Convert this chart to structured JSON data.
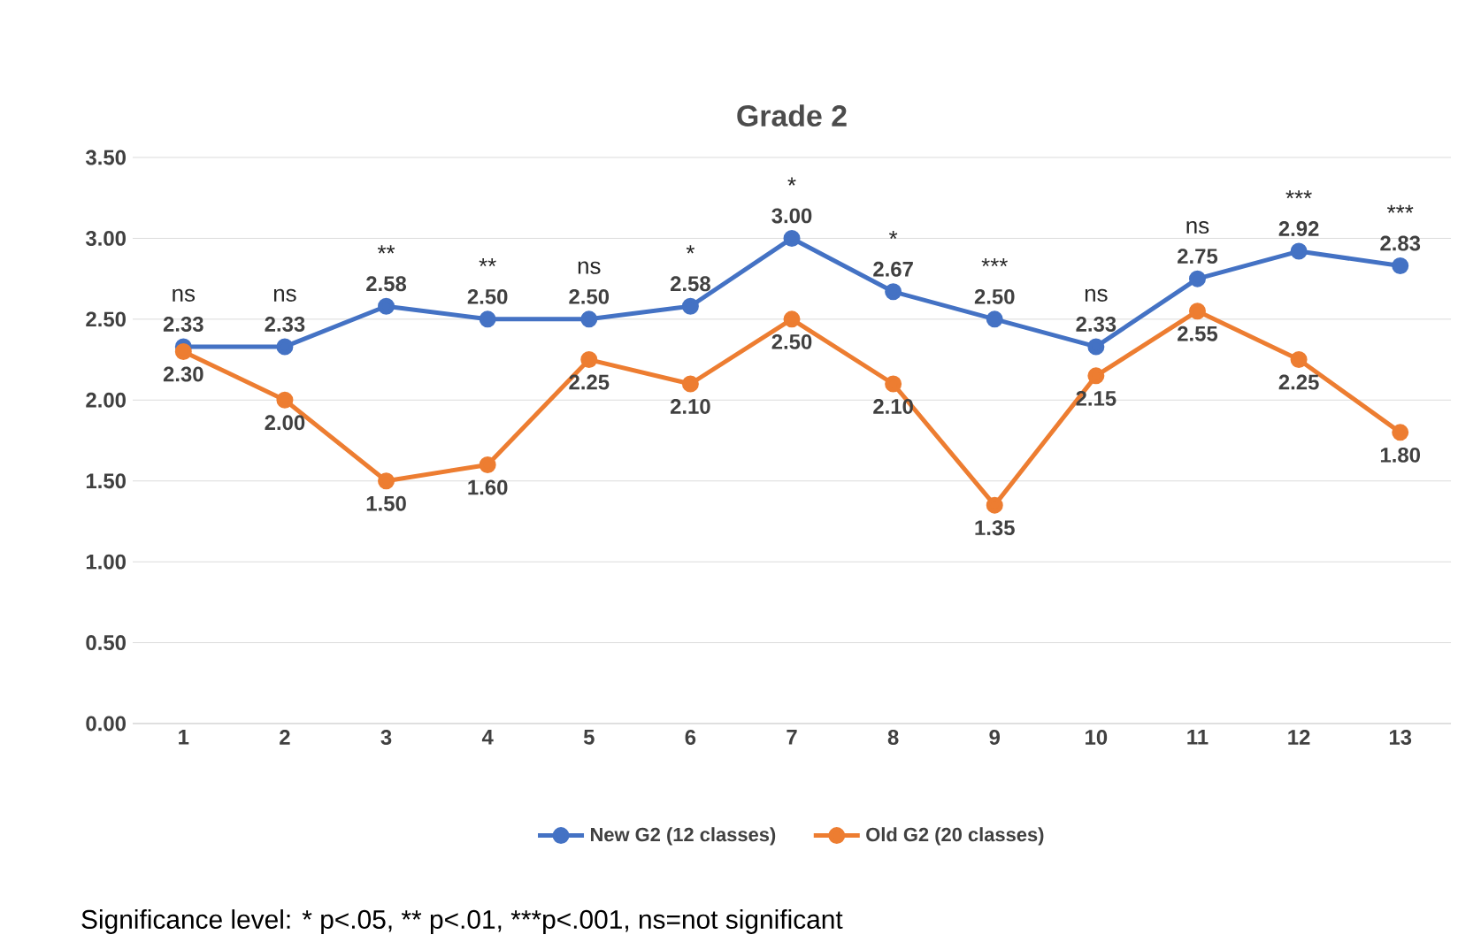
{
  "chart_data": {
    "type": "line",
    "title": "Grade 2",
    "categories": [
      "1",
      "2",
      "3",
      "4",
      "5",
      "6",
      "7",
      "8",
      "9",
      "10",
      "11",
      "12",
      "13"
    ],
    "series": [
      {
        "name": "New G2 (12 classes)",
        "color": "#4472c4",
        "values": [
          2.33,
          2.33,
          2.58,
          2.5,
          2.5,
          2.58,
          3.0,
          2.67,
          2.5,
          2.33,
          2.75,
          2.92,
          2.83
        ],
        "value_labels": [
          "2.33",
          "2.33",
          "2.58",
          "2.50",
          "2.50",
          "2.58",
          "3.00",
          "2.67",
          "2.50",
          "2.33",
          "2.75",
          "2.92",
          "2.83"
        ]
      },
      {
        "name": "Old G2 (20 classes)",
        "color": "#ed7d31",
        "values": [
          2.3,
          2.0,
          1.5,
          1.6,
          2.25,
          2.1,
          2.5,
          2.1,
          1.35,
          2.15,
          2.55,
          2.25,
          1.8
        ],
        "value_labels": [
          "2.30",
          "2.00",
          "1.50",
          "1.60",
          "2.25",
          "2.10",
          "2.50",
          "2.10",
          "1.35",
          "2.15",
          "2.55",
          "2.25",
          "1.80"
        ]
      }
    ],
    "ylim": [
      0,
      3.5
    ],
    "yticks": [
      {
        "value": 0,
        "label": "0.00"
      },
      {
        "value": 0.5,
        "label": "0.50"
      },
      {
        "value": 1,
        "label": "1.00"
      },
      {
        "value": 1.5,
        "label": "1.50"
      },
      {
        "value": 2,
        "label": "2.00"
      },
      {
        "value": 2.5,
        "label": "2.50"
      },
      {
        "value": 3,
        "label": "3.00"
      },
      {
        "value": 3.5,
        "label": "3.50"
      }
    ],
    "grid": "y",
    "legend": "bottom",
    "marker": "circle",
    "line_style": "solid",
    "annotations": [
      {
        "text": "ns",
        "x": "1",
        "y": 2.33
      },
      {
        "text": "ns",
        "x": "2",
        "y": 2.33
      },
      {
        "text": "**",
        "x": "3",
        "y": 2.58
      },
      {
        "text": "**",
        "x": "4",
        "y": 2.5
      },
      {
        "text": "ns",
        "x": "5",
        "y": 2.5
      },
      {
        "text": "*",
        "x": "6",
        "y": 2.58
      },
      {
        "text": "*",
        "x": "7",
        "y": 3.0
      },
      {
        "text": "*",
        "x": "8",
        "y": 2.67
      },
      {
        "text": "***",
        "x": "9",
        "y": 2.5
      },
      {
        "text": "ns",
        "x": "10",
        "y": 2.33
      },
      {
        "text": "ns",
        "x": "11",
        "y": 2.75
      },
      {
        "text": "***",
        "x": "12",
        "y": 2.92
      },
      {
        "text": "***",
        "x": "13",
        "y": 2.83
      },
      "Significance level: * p<.05, ** p<.01, ***p<.001, ns=not significant"
    ]
  }
}
